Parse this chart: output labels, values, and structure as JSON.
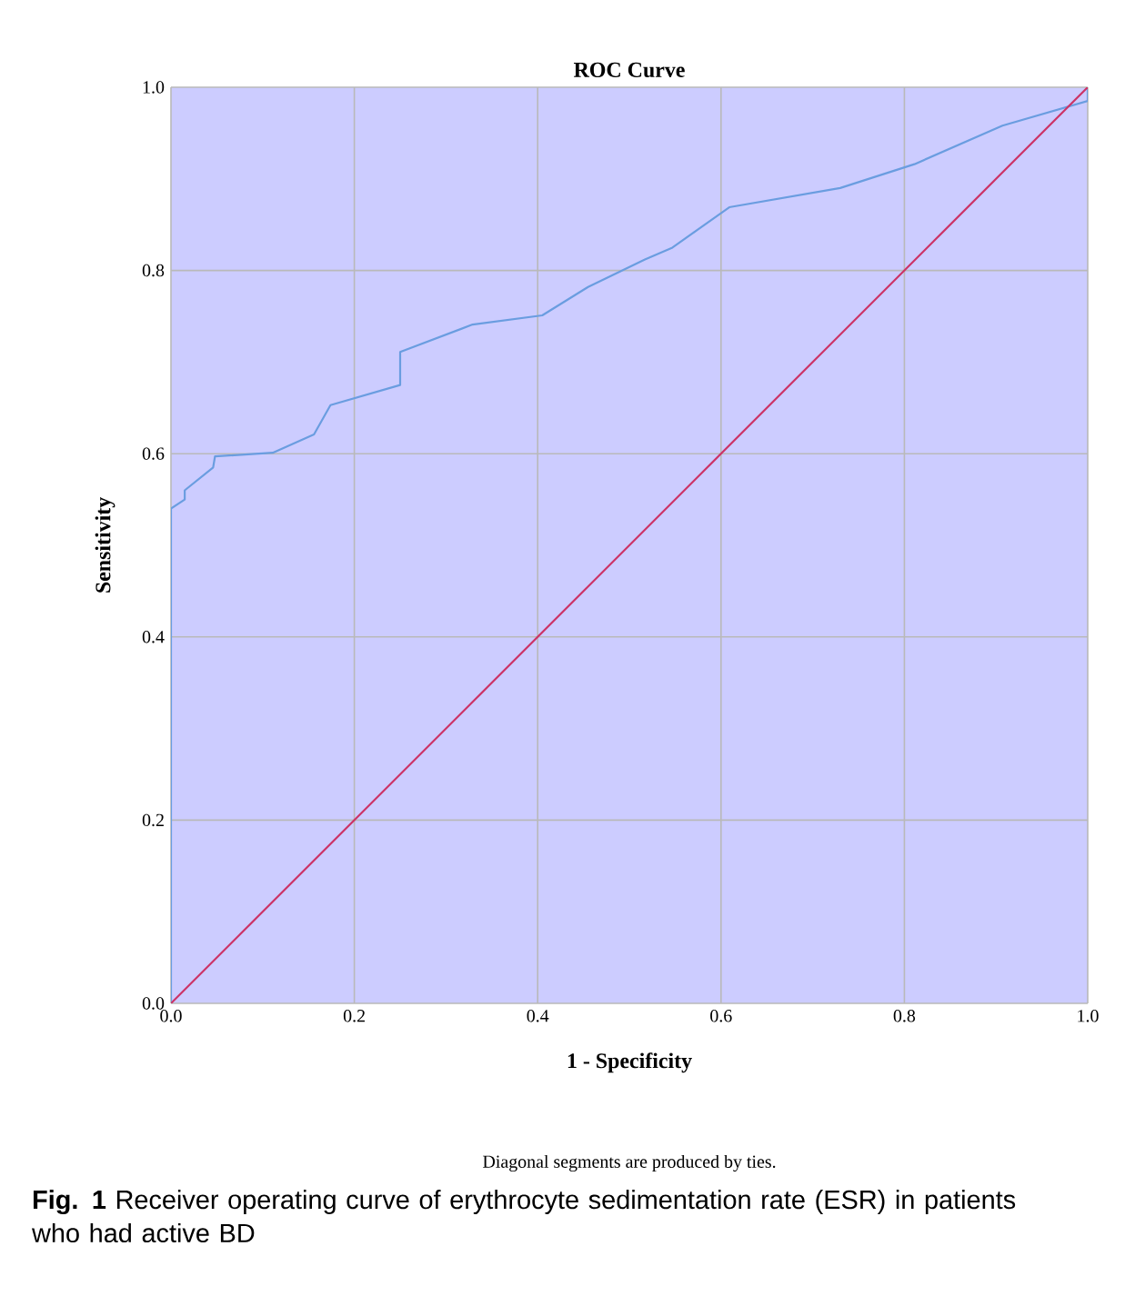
{
  "chart_data": {
    "type": "line",
    "title": "ROC Curve",
    "xlabel": "1 - Specificity",
    "ylabel": "Sensitivity",
    "xlim": [
      0,
      1
    ],
    "ylim": [
      0,
      1
    ],
    "xticks": [
      {
        "value": 0,
        "label": "0.0"
      },
      {
        "value": 0.2,
        "label": "0.2"
      },
      {
        "value": 0.4,
        "label": "0.4"
      },
      {
        "value": 0.6,
        "label": "0.6"
      },
      {
        "value": 0.8,
        "label": "0.8"
      },
      {
        "value": 1,
        "label": "1.0"
      }
    ],
    "yticks": [
      {
        "value": 0,
        "label": "0.0"
      },
      {
        "value": 0.2,
        "label": "0.2"
      },
      {
        "value": 0.4,
        "label": "0.4"
      },
      {
        "value": 0.6,
        "label": "0.6"
      },
      {
        "value": 0.8,
        "label": "0.8"
      },
      {
        "value": 1,
        "label": "1.0"
      }
    ],
    "grid": true,
    "marker": "none",
    "line_style": "solid",
    "series": [
      {
        "color": "#6a9de0",
        "x": [
          0,
          0,
          0.015,
          0.015,
          0.046,
          0.048,
          0.111,
          0.156,
          0.174,
          0.25,
          0.25,
          0.329,
          0.405,
          0.455,
          0.517,
          0.547,
          0.609,
          0.73,
          0.811,
          0.907,
          1.0,
          1.0
        ],
        "values": [
          0,
          0.54,
          0.55,
          0.56,
          0.585,
          0.597,
          0.601,
          0.621,
          0.653,
          0.675,
          0.711,
          0.741,
          0.751,
          0.782,
          0.812,
          0.825,
          0.869,
          0.89,
          0.916,
          0.958,
          0.985,
          1.0
        ]
      },
      {
        "color": "#cc3366",
        "x": [
          0,
          1
        ],
        "values": [
          0,
          1
        ]
      }
    ],
    "annotations": [
      "Diagonal segments are produced by ties.",
      "**Fig. 1** Receiver operating curve of erythrocyte sedimentation rate (ESR) in patients who had active BD"
    ]
  }
}
